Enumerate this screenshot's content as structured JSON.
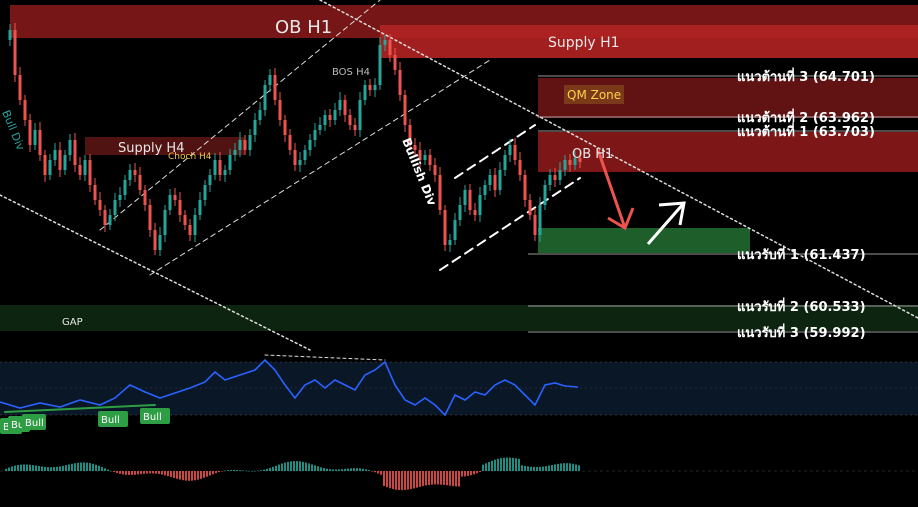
{
  "colors": {
    "background": "#000000",
    "supply_zone": "#8b1a1a",
    "supply_zone_light": "#b22222",
    "demand_zone": "#1e5e2a",
    "candle_up": "#26a69a",
    "candle_down": "#ef5350",
    "rsi_line": "#2962ff",
    "bull_label": "#2e9e44",
    "hist_up": "#26a69a",
    "hist_down": "#ef5350"
  },
  "zones": {
    "ob_h1_top": "OB H1",
    "supply_h1": "Supply H1",
    "supply_h4": "Supply H4",
    "qm_zone": "QM Zone",
    "ob_h1_right": "OB H1",
    "gap": "GAP"
  },
  "annotations": {
    "choch_h4": "Choch H4",
    "bos_h4": "BOS H4",
    "bullish_div": "Bullish Div",
    "bull_div_left": "Bull Div"
  },
  "chart_data": {
    "type": "candlestick",
    "title": "",
    "levels": [
      {
        "label": "แนวต้านที่ 3 (64.701)",
        "value": 64.701
      },
      {
        "label": "แนวต้านที่ 2 (63.962)",
        "value": 63.962
      },
      {
        "label": "แนวต้านที่ 1 (63.703)",
        "value": 63.703
      },
      {
        "label": "แนวรับที่ 1 (61.437)",
        "value": 61.437
      },
      {
        "label": "แนวรับที่ 2 (60.533)",
        "value": 60.533
      },
      {
        "label": "แนวรับที่ 3 (59.992)",
        "value": 59.992
      }
    ],
    "indicator_labels": [
      "Bull",
      "Bull",
      "Bull",
      "Bull",
      "Bull"
    ]
  }
}
